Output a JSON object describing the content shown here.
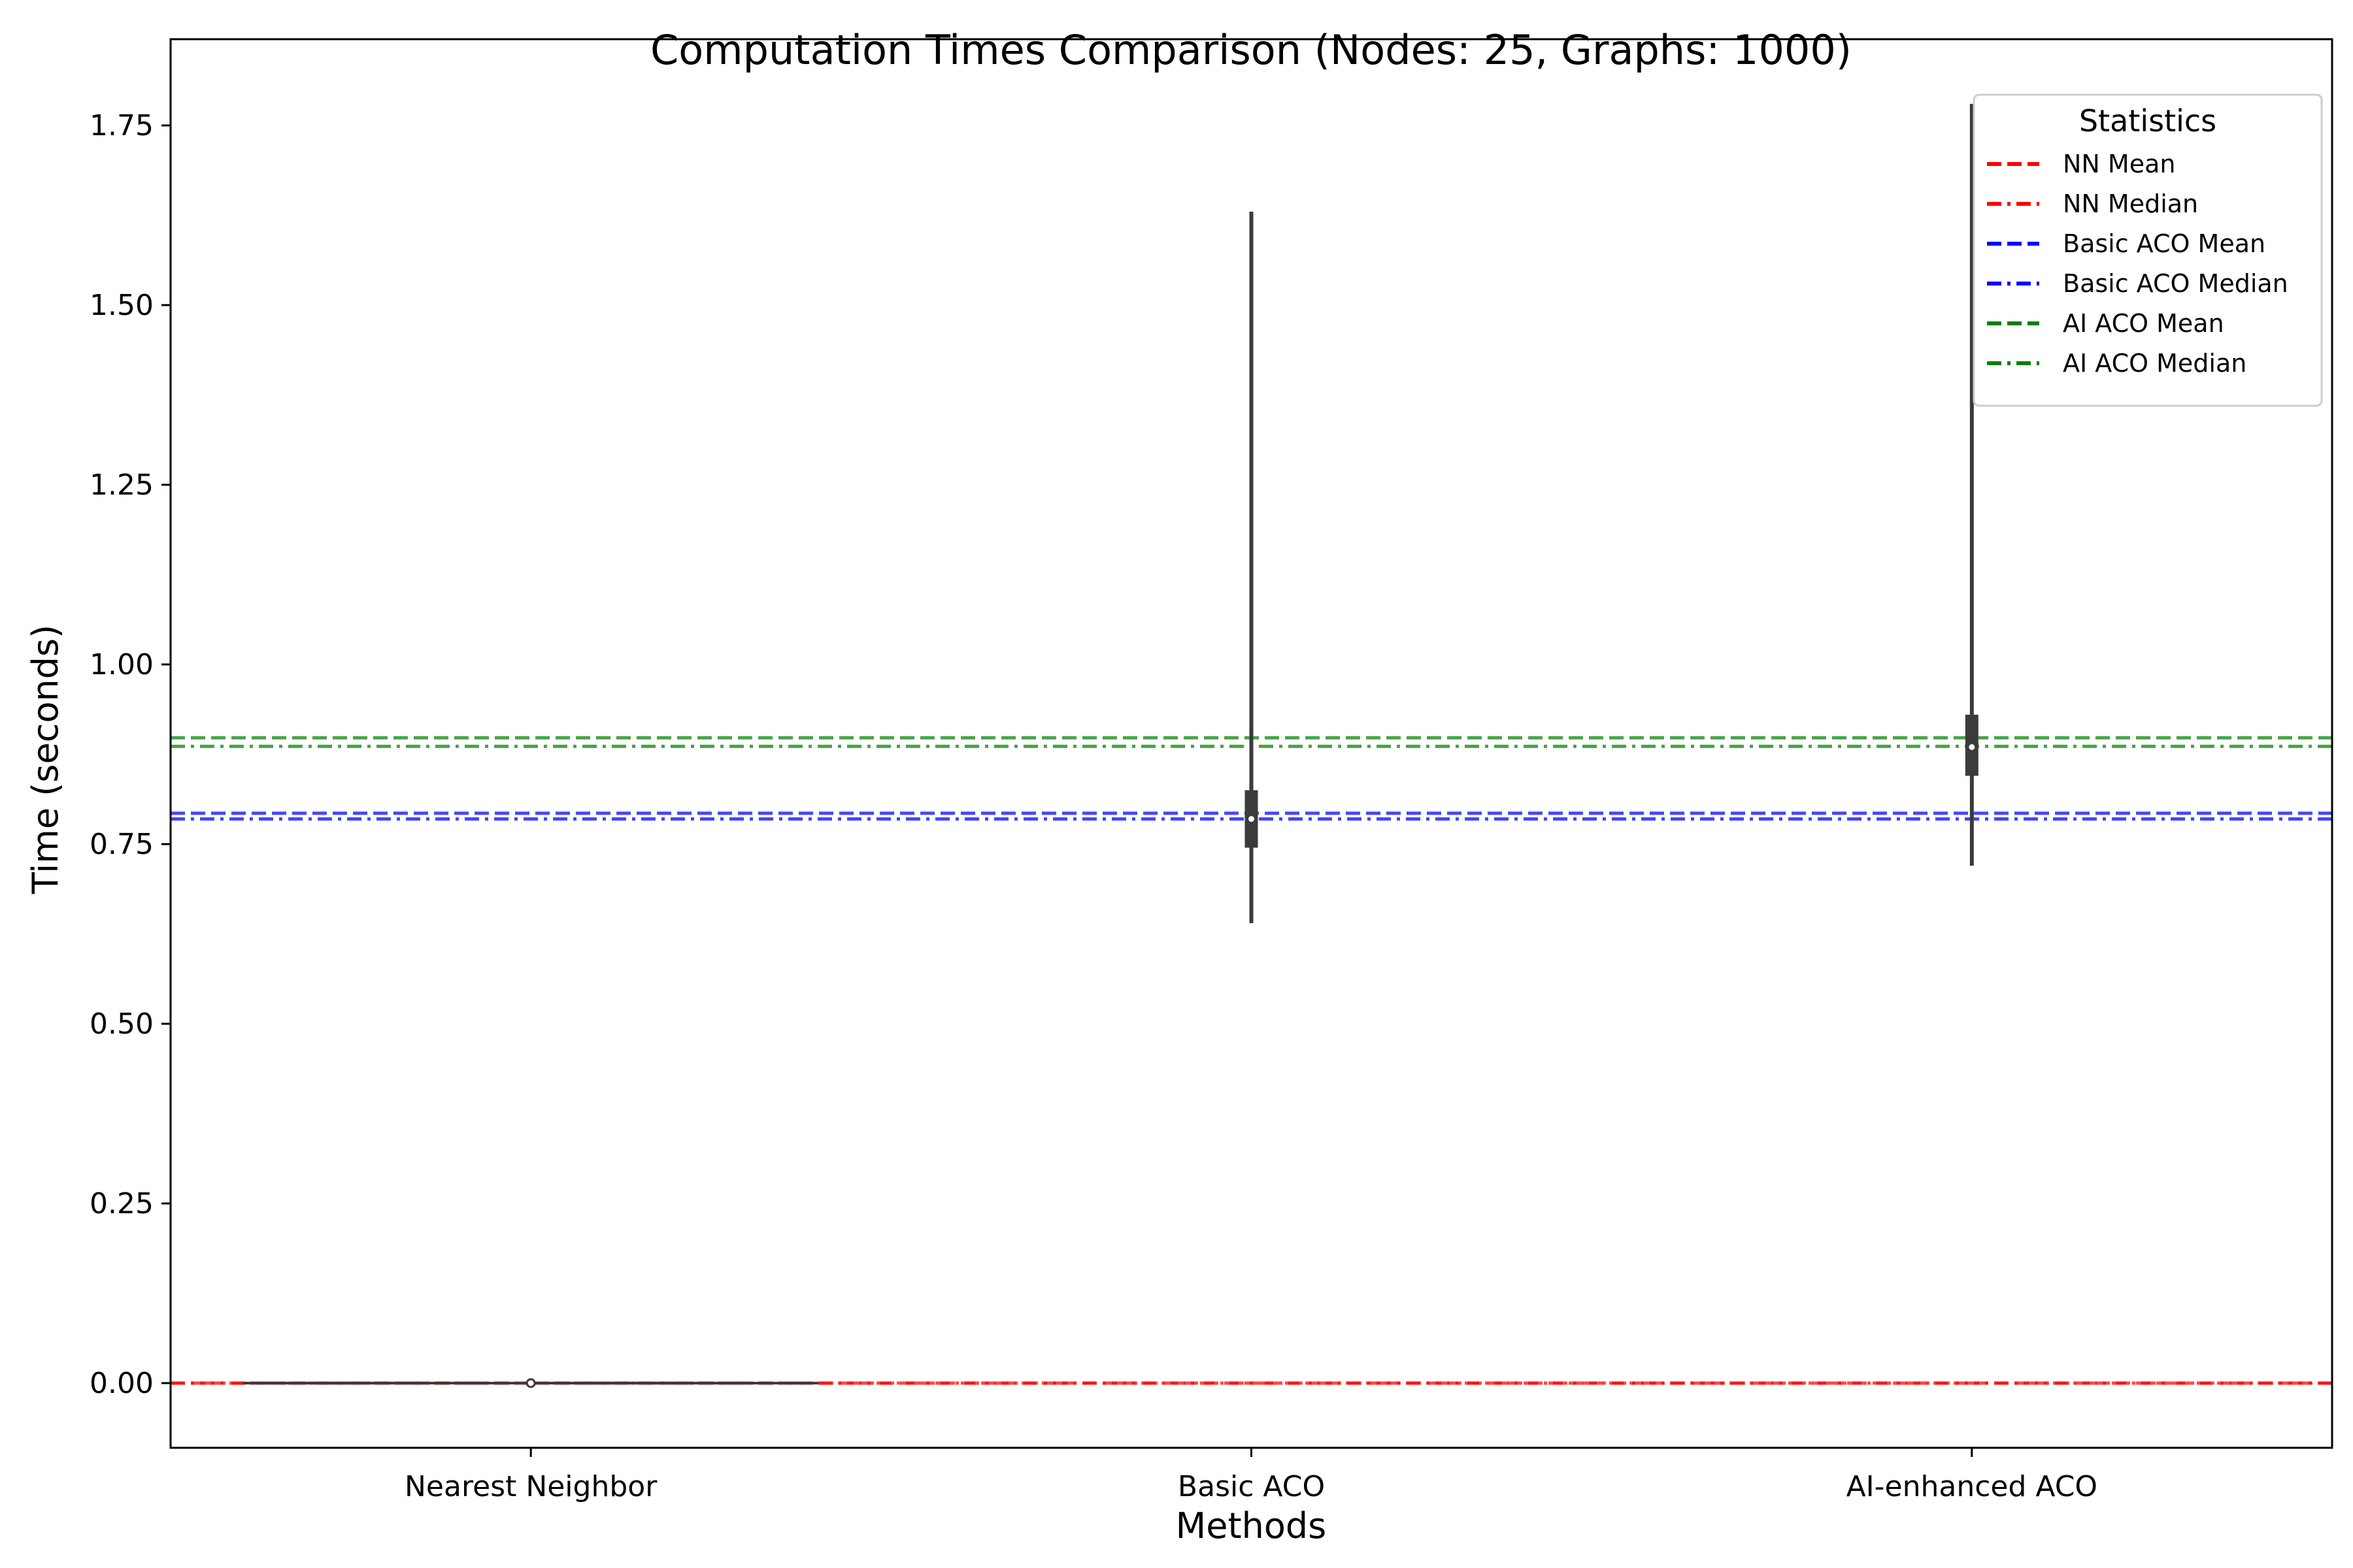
{
  "chart_data": {
    "type": "violin",
    "title": "Computation Times Comparison (Nodes: 25, Graphs: 1000)",
    "xlabel": "Methods",
    "ylabel": "Time (seconds)",
    "ylim": [
      -0.09,
      1.87
    ],
    "yticks": [
      "0.00",
      "0.25",
      "0.50",
      "0.75",
      "1.00",
      "1.25",
      "1.50",
      "1.75"
    ],
    "categories": [
      "Nearest Neighbor",
      "Basic ACO",
      "AI-enhanced ACO"
    ],
    "distributions": [
      {
        "category": "Nearest Neighbor",
        "min": 0.0,
        "q1": 0.0,
        "median": 0.0,
        "q3": 0.0,
        "max": 0.0
      },
      {
        "category": "Basic ACO",
        "min": 0.64,
        "q1": 0.745,
        "median": 0.785,
        "q3": 0.825,
        "max": 1.63
      },
      {
        "category": "AI-enhanced ACO",
        "min": 0.72,
        "q1": 0.845,
        "median": 0.885,
        "q3": 0.93,
        "max": 1.78
      }
    ],
    "reference_lines": [
      {
        "name": "NN Mean",
        "value": 0.0,
        "color": "#ff0000",
        "style": "dashed"
      },
      {
        "name": "NN Median",
        "value": 0.0,
        "color": "#ff0000",
        "style": "dashdot"
      },
      {
        "name": "Basic ACO Mean",
        "value": 0.793,
        "color": "#0000ff",
        "style": "dashed"
      },
      {
        "name": "Basic ACO Median",
        "value": 0.785,
        "color": "#0000ff",
        "style": "dashdot"
      },
      {
        "name": "AI ACO Mean",
        "value": 0.898,
        "color": "#008000",
        "style": "dashed"
      },
      {
        "name": "AI ACO Median",
        "value": 0.886,
        "color": "#008000",
        "style": "dashdot"
      }
    ],
    "legend": {
      "title": "Statistics",
      "position": "top-right"
    },
    "grid": false
  }
}
